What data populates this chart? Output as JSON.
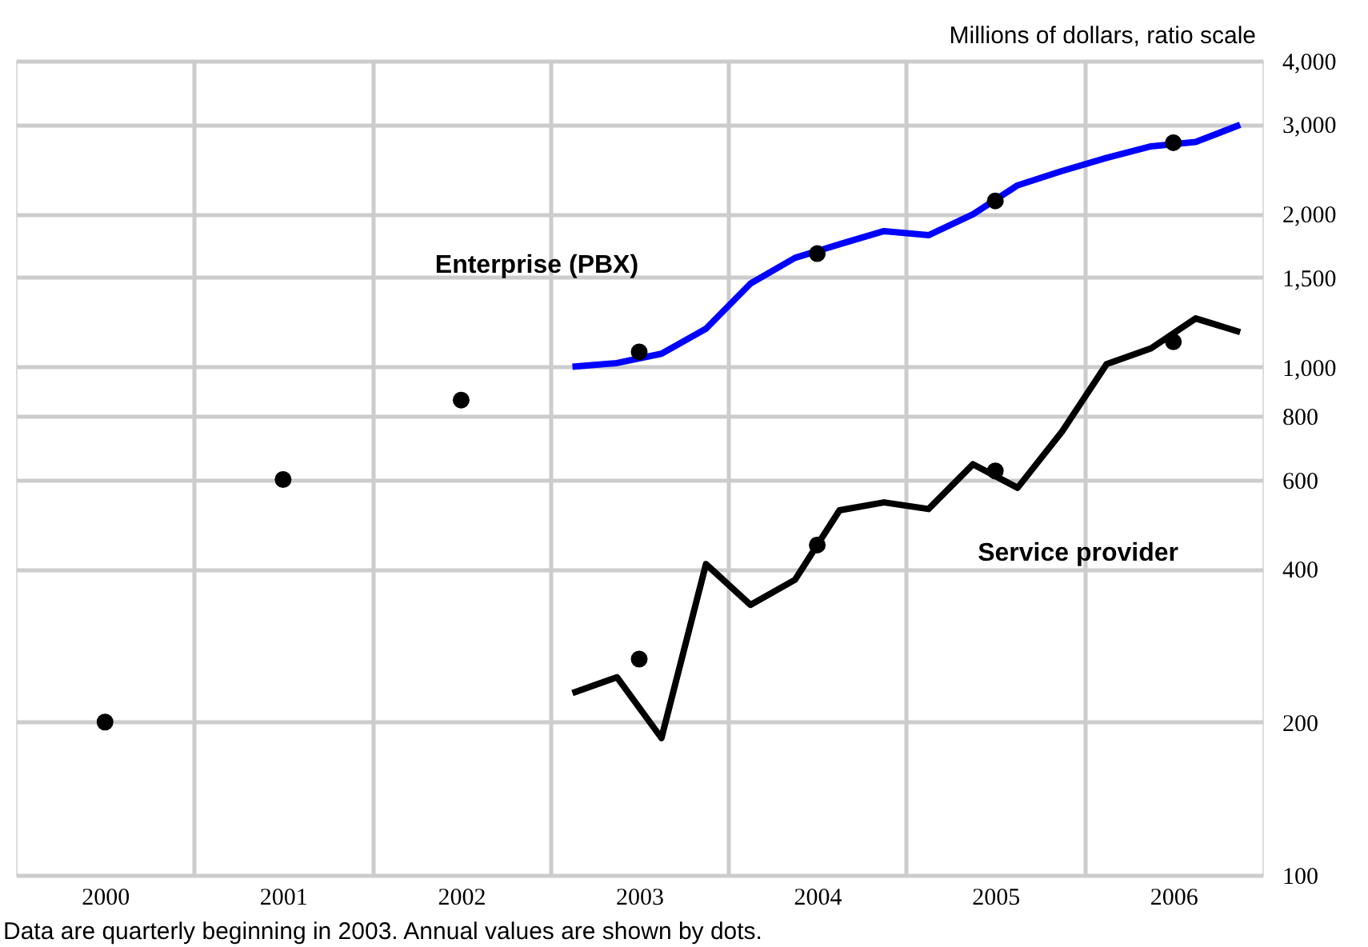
{
  "chart_data": {
    "type": "line",
    "ylabel": "Millions of dollars, ratio scale",
    "annotations": [
      "Data are quarterly beginning in 2003.  Annual values are shown by dots."
    ],
    "xlim": [
      1999.5,
      2006.5
    ],
    "xticks": [
      {
        "value": 2000,
        "label": "2000"
      },
      {
        "value": 2001,
        "label": "2001"
      },
      {
        "value": 2002,
        "label": "2002"
      },
      {
        "value": 2003,
        "label": "2003"
      },
      {
        "value": 2004,
        "label": "2004"
      },
      {
        "value": 2005,
        "label": "2005"
      },
      {
        "value": 2006,
        "label": "2006"
      },
      {
        "value": 2000.5,
        "label": null
      },
      {
        "value": 2001.5,
        "label": null
      },
      {
        "value": 2002.5,
        "label": null
      },
      {
        "value": 2003.5,
        "label": null
      },
      {
        "value": 2004.5,
        "label": null
      },
      {
        "value": 2005.5,
        "label": null
      }
    ],
    "ylim": [
      100,
      4000
    ],
    "yticks": [
      100,
      200,
      400,
      600,
      800,
      {
        "value": 1000,
        "label": "1,000"
      },
      {
        "value": 1500,
        "label": "1,500"
      },
      {
        "value": 2000,
        "label": "2,000"
      },
      {
        "value": 3000,
        "label": "3,000"
      },
      {
        "value": 4000,
        "label": "4,000"
      }
    ],
    "log": "y",
    "grid": true,
    "legend": false,
    "line_style": "solid",
    "series": [
      {
        "name": "Enterprise (PBX)",
        "color": "#0000ff",
        "x": [
          2002.625,
          2002.875,
          2003.125,
          2003.375,
          2003.625,
          2003.875,
          2004.125,
          2004.375,
          2004.625,
          2004.875,
          2005.125,
          2005.375,
          2005.625,
          2005.875,
          2006.125,
          2006.375
        ],
        "values": [
          1000,
          1017,
          1061,
          1188,
          1458,
          1638,
          1742,
          1849,
          1815,
          1996,
          2275,
          2428,
          2576,
          2715,
          2768,
          2994
        ]
      },
      {
        "name": "Service provider",
        "color": "#000000",
        "x": [
          2002.625,
          2002.875,
          2003.125,
          2003.375,
          2003.625,
          2003.875,
          2004.125,
          2004.375,
          2004.625,
          2004.875,
          2005.125,
          2005.375,
          2005.625,
          2005.875,
          2006.125,
          2006.375
        ],
        "values": [
          228,
          245,
          186,
          409,
          340,
          381,
          522,
          541,
          525,
          643,
          578,
          746,
          1012,
          1087,
          1245,
          1170
        ]
      },
      {
        "color": "#000000",
        "type": "scatter",
        "marker": "circle",
        "x": [
          2000,
          2001,
          2002
        ],
        "values": [
          200,
          600,
          860
        ]
      },
      {
        "color": "#000000",
        "type": "scatter",
        "marker": "circle",
        "x": [
          2003,
          2004,
          2005,
          2006
        ],
        "values": [
          1070,
          1670,
          2120,
          2760
        ]
      },
      {
        "color": "#000000",
        "type": "scatter",
        "marker": "circle",
        "x": [
          2003,
          2004,
          2005,
          2006
        ],
        "values": [
          266,
          446,
          624,
          1120
        ]
      }
    ]
  }
}
